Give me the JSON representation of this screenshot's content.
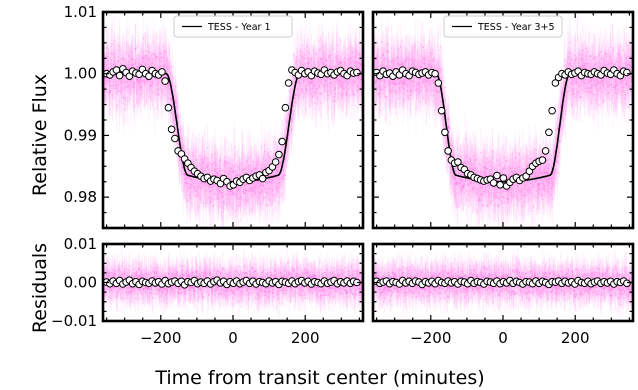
{
  "figure": {
    "xlabel": "Time from transit center (minutes)",
    "ylabel_top": "Relative Flux",
    "ylabel_bottom": "Residuals",
    "colors": {
      "scatter": "#ff33dd",
      "model": "#000000",
      "binned_face": "#ffffff",
      "binned_edge": "#000000",
      "frame": "#000000"
    }
  },
  "chart_data": [
    {
      "type": "scatter",
      "panel": "flux-year1",
      "legend": {
        "label": "TESS - Year 1",
        "placement": "top-center"
      },
      "xlim": [
        -360,
        360
      ],
      "ylim": [
        0.975,
        1.01
      ],
      "yticks": [
        0.98,
        0.99,
        1.0,
        1.01
      ],
      "ytick_labels": [
        "0.98",
        "0.99",
        "1.00",
        "1.01"
      ],
      "model": {
        "depth": 0.0175,
        "t14_half": 185,
        "ingress": 60
      },
      "binned_points": [
        [
          -350,
          1.0
        ],
        [
          -341,
          0.9998
        ],
        [
          -332,
          1.0003
        ],
        [
          -323,
          1.0006
        ],
        [
          -314,
          0.9997
        ],
        [
          -305,
          1.0008
        ],
        [
          -296,
          1.0002
        ],
        [
          -287,
          0.9996
        ],
        [
          -278,
          1.0004
        ],
        [
          -269,
          1.0001
        ],
        [
          -260,
          0.9999
        ],
        [
          -251,
          1.0007
        ],
        [
          -242,
          1.0
        ],
        [
          -233,
          0.9996
        ],
        [
          -224,
          1.0005
        ],
        [
          -215,
          1.0
        ],
        [
          -206,
          0.9998
        ],
        [
          -197,
          1.0003
        ],
        [
          -188,
          0.9988
        ],
        [
          -179,
          0.9945
        ],
        [
          -170,
          0.991
        ],
        [
          -161,
          0.9895
        ],
        [
          -152,
          0.9875
        ],
        [
          -143,
          0.987
        ],
        [
          -134,
          0.9862
        ],
        [
          -125,
          0.9855
        ],
        [
          -116,
          0.9848
        ],
        [
          -107,
          0.9842
        ],
        [
          -98,
          0.9838
        ],
        [
          -89,
          0.9834
        ],
        [
          -80,
          0.983
        ],
        [
          -71,
          0.9832
        ],
        [
          -62,
          0.9826
        ],
        [
          -53,
          0.9829
        ],
        [
          -44,
          0.9827
        ],
        [
          -35,
          0.9822
        ],
        [
          -26,
          0.983
        ],
        [
          -17,
          0.9825
        ],
        [
          -8,
          0.9818
        ],
        [
          1,
          0.982
        ],
        [
          10,
          0.9826
        ],
        [
          19,
          0.9824
        ],
        [
          28,
          0.9829
        ],
        [
          37,
          0.9832
        ],
        [
          46,
          0.9827
        ],
        [
          55,
          0.9831
        ],
        [
          64,
          0.9834
        ],
        [
          73,
          0.9836
        ],
        [
          82,
          0.983
        ],
        [
          91,
          0.984
        ],
        [
          100,
          0.9843
        ],
        [
          109,
          0.9849
        ],
        [
          118,
          0.9857
        ],
        [
          127,
          0.9869
        ],
        [
          136,
          0.989
        ],
        [
          145,
          0.9945
        ],
        [
          154,
          0.9985
        ],
        [
          163,
          1.0006
        ],
        [
          172,
          1.0002
        ],
        [
          181,
          0.9998
        ],
        [
          190,
          1.0005
        ],
        [
          199,
          1.0
        ],
        [
          208,
          1.0003
        ],
        [
          217,
          0.9997
        ],
        [
          226,
          1.0004
        ],
        [
          235,
          1.0001
        ],
        [
          244,
          0.9999
        ],
        [
          253,
          1.0006
        ],
        [
          262,
          1.0
        ],
        [
          271,
          1.0002
        ],
        [
          280,
          0.9998
        ],
        [
          289,
          1.0003
        ],
        [
          298,
          1.0005
        ],
        [
          307,
          1.0
        ],
        [
          316,
          0.9997
        ],
        [
          325,
          1.0004
        ],
        [
          334,
          1.0001
        ],
        [
          343,
          1.0002
        ]
      ]
    },
    {
      "type": "scatter",
      "panel": "flux-year35",
      "legend": {
        "label": "TESS - Year 3+5",
        "placement": "top-center"
      },
      "xlim": [
        -360,
        360
      ],
      "ylim": [
        0.975,
        1.01
      ],
      "model": {
        "depth": 0.0175,
        "t14_half": 185,
        "ingress": 55
      },
      "binned_points": [
        [
          -350,
          1.0002
        ],
        [
          -341,
          0.9997
        ],
        [
          -332,
          1.0004
        ],
        [
          -323,
          0.9999
        ],
        [
          -314,
          1.0001
        ],
        [
          -305,
          0.9996
        ],
        [
          -296,
          1.0003
        ],
        [
          -287,
          0.9998
        ],
        [
          -278,
          1.0006
        ],
        [
          -269,
          1.0
        ],
        [
          -260,
          0.9997
        ],
        [
          -251,
          1.0004
        ],
        [
          -242,
          1.0002
        ],
        [
          -233,
          0.9999
        ],
        [
          -224,
          1.0001
        ],
        [
          -215,
          1.0003
        ],
        [
          -206,
          0.9998
        ],
        [
          -197,
          1.0002
        ],
        [
          -188,
          1.0
        ],
        [
          -179,
          0.9985
        ],
        [
          -170,
          0.994
        ],
        [
          -161,
          0.9905
        ],
        [
          -152,
          0.9875
        ],
        [
          -143,
          0.986
        ],
        [
          -134,
          0.9855
        ],
        [
          -125,
          0.9857
        ],
        [
          -116,
          0.9848
        ],
        [
          -107,
          0.9845
        ],
        [
          -98,
          0.9838
        ],
        [
          -89,
          0.9836
        ],
        [
          -80,
          0.9832
        ],
        [
          -71,
          0.983
        ],
        [
          -62,
          0.9828
        ],
        [
          -53,
          0.9826
        ],
        [
          -44,
          0.9828
        ],
        [
          -35,
          0.9829
        ],
        [
          -26,
          0.9823
        ],
        [
          -17,
          0.9835
        ],
        [
          -8,
          0.982
        ],
        [
          1,
          0.9831
        ],
        [
          10,
          0.9818
        ],
        [
          19,
          0.9824
        ],
        [
          28,
          0.9829
        ],
        [
          37,
          0.9832
        ],
        [
          46,
          0.9827
        ],
        [
          55,
          0.9831
        ],
        [
          64,
          0.9834
        ],
        [
          73,
          0.9842
        ],
        [
          82,
          0.985
        ],
        [
          91,
          0.9855
        ],
        [
          100,
          0.9858
        ],
        [
          109,
          0.986
        ],
        [
          118,
          0.9875
        ],
        [
          127,
          0.9905
        ],
        [
          136,
          0.994
        ],
        [
          145,
          0.9985
        ],
        [
          154,
          0.9994
        ],
        [
          163,
          1.0
        ],
        [
          172,
          0.9998
        ],
        [
          181,
          1.0003
        ],
        [
          190,
          0.9999
        ],
        [
          199,
          1.0001
        ],
        [
          208,
          1.0004
        ],
        [
          217,
          0.9997
        ],
        [
          226,
          1.0002
        ],
        [
          235,
          1.0
        ],
        [
          244,
          0.9999
        ],
        [
          253,
          1.0003
        ],
        [
          262,
          1.0
        ],
        [
          271,
          0.9998
        ],
        [
          280,
          1.0005
        ],
        [
          289,
          1.0001
        ],
        [
          298,
          0.9999
        ],
        [
          307,
          1.0006
        ],
        [
          316,
          1.0
        ],
        [
          325,
          0.9997
        ],
        [
          334,
          1.0004
        ],
        [
          343,
          1.0002
        ]
      ]
    },
    {
      "type": "scatter",
      "panel": "resid-year1",
      "xlim": [
        -360,
        360
      ],
      "ylim": [
        -0.01,
        0.01
      ],
      "yticks": [
        -0.01,
        0.0,
        0.01
      ],
      "ytick_labels": [
        "−0.01",
        "0.00",
        "0.01"
      ],
      "xticks": [
        -200,
        0,
        200
      ],
      "xtick_labels": [
        "−200",
        "0",
        "200"
      ],
      "binned_points": [
        [
          -350,
          0.0001
        ],
        [
          -341,
          -0.0003
        ],
        [
          -332,
          0.0004
        ],
        [
          -323,
          -0.0002
        ],
        [
          -314,
          0.0005
        ],
        [
          -305,
          -0.0004
        ],
        [
          -296,
          0.0001
        ],
        [
          -287,
          0.0006
        ],
        [
          -278,
          -0.0003
        ],
        [
          -269,
          0.0002
        ],
        [
          -260,
          -0.0005
        ],
        [
          -251,
          0.0003
        ],
        [
          -242,
          0.0
        ],
        [
          -233,
          -0.0002
        ],
        [
          -224,
          0.0004
        ],
        [
          -215,
          -0.0001
        ],
        [
          -206,
          0.0002
        ],
        [
          -197,
          -0.0004
        ],
        [
          -188,
          0.0005
        ],
        [
          -179,
          -0.0003
        ],
        [
          -170,
          0.0001
        ],
        [
          -161,
          0.0004
        ],
        [
          -152,
          -0.0002
        ],
        [
          -143,
          0.0003
        ],
        [
          -134,
          -0.0006
        ],
        [
          -125,
          0.0002
        ],
        [
          -116,
          0.0
        ],
        [
          -107,
          0.0005
        ],
        [
          -98,
          -0.0003
        ],
        [
          -89,
          0.0001
        ],
        [
          -80,
          -0.0002
        ],
        [
          -71,
          0.0004
        ],
        [
          -62,
          -0.0004
        ],
        [
          -53,
          0.0002
        ],
        [
          -44,
          0.0006
        ],
        [
          -35,
          -0.0001
        ],
        [
          -26,
          0.0003
        ],
        [
          -17,
          -0.0005
        ],
        [
          -8,
          0.0002
        ],
        [
          1,
          -0.0002
        ],
        [
          10,
          0.0004
        ],
        [
          19,
          -0.0003
        ],
        [
          28,
          0.0001
        ],
        [
          37,
          0.0005
        ],
        [
          46,
          -0.0002
        ],
        [
          55,
          0.0003
        ],
        [
          64,
          -0.0004
        ],
        [
          73,
          0.0002
        ],
        [
          82,
          0.0
        ],
        [
          91,
          -0.0003
        ],
        [
          100,
          0.0004
        ],
        [
          109,
          -0.0001
        ],
        [
          118,
          0.0002
        ],
        [
          127,
          -0.0005
        ],
        [
          136,
          0.0003
        ],
        [
          145,
          0.0001
        ],
        [
          154,
          -0.0002
        ],
        [
          163,
          0.0004
        ],
        [
          172,
          -0.0003
        ],
        [
          181,
          0.0002
        ],
        [
          190,
          0.0005
        ],
        [
          199,
          -0.0001
        ],
        [
          208,
          0.0003
        ],
        [
          217,
          -0.0004
        ],
        [
          226,
          0.0002
        ],
        [
          235,
          0.0
        ],
        [
          244,
          -0.0003
        ],
        [
          253,
          0.0004
        ],
        [
          262,
          -0.0002
        ],
        [
          271,
          0.0001
        ],
        [
          280,
          0.0005
        ],
        [
          289,
          -0.0003
        ],
        [
          298,
          0.0002
        ],
        [
          307,
          -0.0001
        ],
        [
          316,
          0.0004
        ],
        [
          325,
          -0.0002
        ],
        [
          334,
          0.0003
        ],
        [
          343,
          0.0
        ]
      ]
    },
    {
      "type": "scatter",
      "panel": "resid-year35",
      "xlim": [
        -360,
        360
      ],
      "ylim": [
        -0.01,
        0.01
      ],
      "xticks": [
        -200,
        0,
        200
      ],
      "xtick_labels": [
        "−200",
        "0",
        "200"
      ],
      "binned_points": [
        [
          -350,
          0.0003
        ],
        [
          -341,
          -0.0002
        ],
        [
          -332,
          0.0001
        ],
        [
          -323,
          0.0004
        ],
        [
          -314,
          -0.0003
        ],
        [
          -305,
          0.0002
        ],
        [
          -296,
          0.0
        ],
        [
          -287,
          -0.0004
        ],
        [
          -278,
          0.0005
        ],
        [
          -269,
          -0.0001
        ],
        [
          -260,
          0.0003
        ],
        [
          -251,
          -0.0002
        ],
        [
          -242,
          0.0004
        ],
        [
          -233,
          0.0001
        ],
        [
          -224,
          -0.0005
        ],
        [
          -215,
          0.0002
        ],
        [
          -206,
          -0.0001
        ],
        [
          -197,
          0.0003
        ],
        [
          -188,
          -0.0003
        ],
        [
          -179,
          0.0005
        ],
        [
          -170,
          0.0
        ],
        [
          -161,
          -0.0002
        ],
        [
          -152,
          0.0004
        ],
        [
          -143,
          -0.0001
        ],
        [
          -134,
          0.0002
        ],
        [
          -125,
          -0.0004
        ],
        [
          -116,
          0.0003
        ],
        [
          -107,
          0.0001
        ],
        [
          -98,
          -0.0003
        ],
        [
          -89,
          0.0005
        ],
        [
          -80,
          -0.0002
        ],
        [
          -71,
          0.0002
        ],
        [
          -62,
          0.0
        ],
        [
          -53,
          -0.0004
        ],
        [
          -44,
          0.0003
        ],
        [
          -35,
          0.0001
        ],
        [
          -26,
          -0.0002
        ],
        [
          -17,
          0.0004
        ],
        [
          -8,
          -0.0003
        ],
        [
          1,
          0.0002
        ],
        [
          10,
          -0.0001
        ],
        [
          19,
          0.0005
        ],
        [
          28,
          -0.0002
        ],
        [
          37,
          0.0003
        ],
        [
          46,
          0.0
        ],
        [
          55,
          -0.0004
        ],
        [
          64,
          0.0002
        ],
        [
          73,
          0.0001
        ],
        [
          82,
          -0.0003
        ],
        [
          91,
          0.0004
        ],
        [
          100,
          -0.0002
        ],
        [
          109,
          0.0003
        ],
        [
          118,
          0.0
        ],
        [
          127,
          -0.0005
        ],
        [
          136,
          0.0002
        ],
        [
          145,
          0.0001
        ],
        [
          154,
          0.0004
        ],
        [
          163,
          -0.0002
        ],
        [
          172,
          0.0003
        ],
        [
          181,
          -0.0001
        ],
        [
          190,
          0.0002
        ],
        [
          199,
          -0.0004
        ],
        [
          208,
          0.0005
        ],
        [
          217,
          0.0
        ],
        [
          226,
          -0.0002
        ],
        [
          235,
          0.0003
        ],
        [
          244,
          -0.0003
        ],
        [
          253,
          0.0001
        ],
        [
          262,
          0.0004
        ],
        [
          271,
          -0.0002
        ],
        [
          280,
          0.0002
        ],
        [
          289,
          -0.0001
        ],
        [
          298,
          0.0003
        ],
        [
          307,
          -0.0004
        ],
        [
          316,
          0.0002
        ],
        [
          325,
          0.0
        ],
        [
          334,
          0.0004
        ],
        [
          343,
          -0.0002
        ]
      ]
    }
  ]
}
